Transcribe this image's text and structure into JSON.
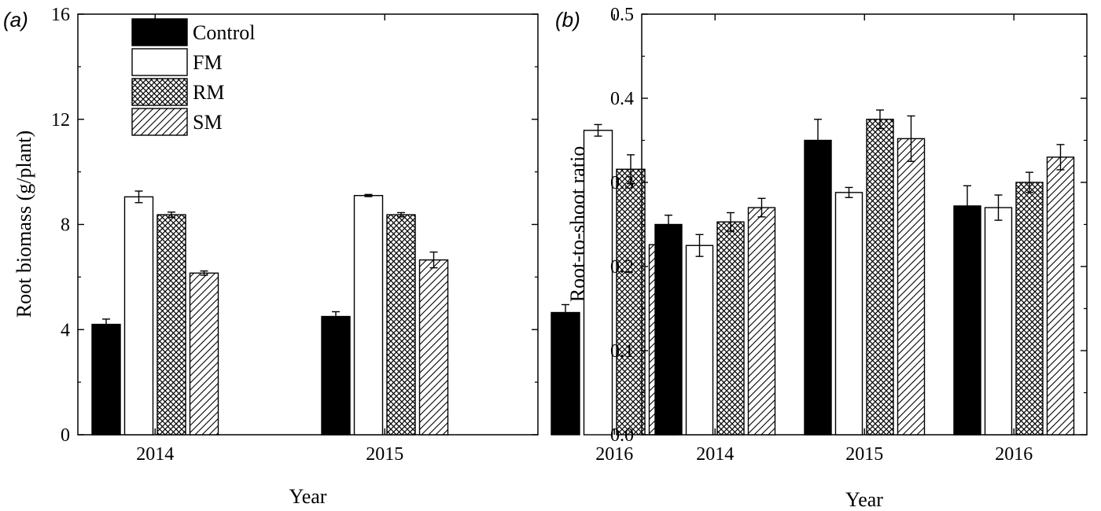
{
  "chart_data": [
    {
      "panel": "(a)",
      "type": "bar",
      "categories": [
        "2014",
        "2015",
        "2016"
      ],
      "series": [
        {
          "name": "Control",
          "values": [
            4.2,
            4.5,
            4.65
          ],
          "errors": [
            0.2,
            0.18,
            0.3
          ]
        },
        {
          "name": "FM",
          "values": [
            9.05,
            9.1,
            11.58
          ],
          "errors": [
            0.22,
            0.04,
            0.22
          ]
        },
        {
          "name": "RM",
          "values": [
            8.37,
            8.37,
            10.1
          ],
          "errors": [
            0.1,
            0.08,
            0.55
          ]
        },
        {
          "name": "SM",
          "values": [
            6.15,
            6.65,
            7.23
          ],
          "errors": [
            0.08,
            0.3,
            0.16
          ]
        }
      ],
      "xlabel": "Year",
      "ylabel": "Root biomass (g/plant)",
      "ylim": [
        0,
        16
      ],
      "yticks": [
        "0",
        "4",
        "8",
        "12",
        "16"
      ],
      "legend": "top-left"
    },
    {
      "panel": "(b)",
      "type": "bar",
      "categories": [
        "2014",
        "2015",
        "2016"
      ],
      "series": [
        {
          "name": "Control",
          "values": [
            0.25,
            0.35,
            0.272
          ],
          "errors": [
            0.011,
            0.025,
            0.024
          ]
        },
        {
          "name": "FM",
          "values": [
            0.225,
            0.288,
            0.27
          ],
          "errors": [
            0.013,
            0.006,
            0.015
          ]
        },
        {
          "name": "RM",
          "values": [
            0.253,
            0.375,
            0.3
          ],
          "errors": [
            0.011,
            0.011,
            0.012
          ]
        },
        {
          "name": "SM",
          "values": [
            0.27,
            0.352,
            0.33
          ],
          "errors": [
            0.011,
            0.027,
            0.015
          ]
        }
      ],
      "xlabel": "Year",
      "ylabel": "Root-to-shoot ratio",
      "ylim": [
        0,
        0.5
      ],
      "yticks": [
        "0.0",
        "0.1",
        "0.2",
        "0.3",
        "0.4",
        "0.5"
      ]
    }
  ]
}
